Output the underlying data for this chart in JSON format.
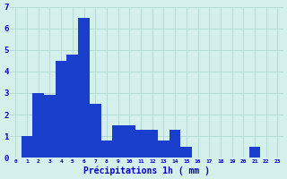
{
  "values": [
    0,
    1.0,
    3.0,
    2.9,
    4.5,
    4.8,
    6.5,
    2.5,
    0.8,
    1.5,
    1.5,
    1.3,
    1.3,
    0.8,
    1.3,
    0.5,
    0,
    0,
    0,
    0,
    0,
    0.5,
    0,
    0
  ],
  "bar_color": "#1a3fcc",
  "background_color": "#d4f0ec",
  "grid_color": "#b0d8d0",
  "xlabel": "Précipitations 1h ( mm )",
  "xlabel_color": "#0000cc",
  "tick_color": "#0000cc",
  "ylim": [
    0,
    7
  ],
  "yticks": [
    0,
    1,
    2,
    3,
    4,
    5,
    6,
    7
  ]
}
